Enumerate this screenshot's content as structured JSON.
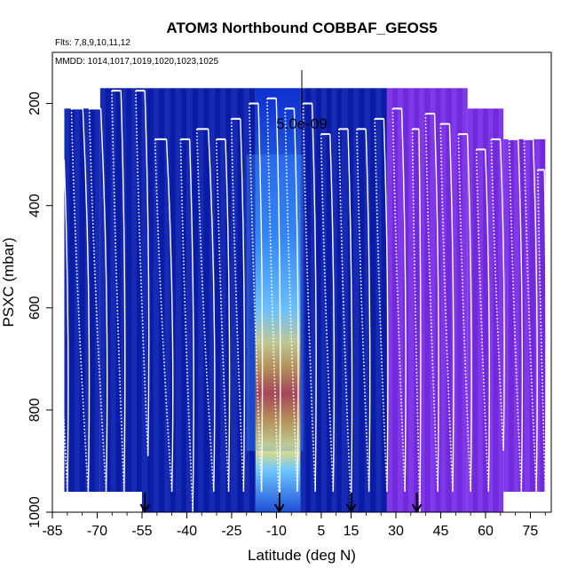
{
  "chart_data": {
    "type": "heatmap",
    "title": "ATOM3 Northbound COBBAF_GEOS5",
    "subtitle_flights": "Flts: 7,8,9,10,11,12",
    "subtitle_dates": "MMDD: 1014,1017,1019,1020,1023,1025",
    "xlabel": "Latitude (deg N)",
    "ylabel": "PSXC (mbar)",
    "xlim": [
      -85,
      82
    ],
    "ylim": [
      1000,
      100
    ],
    "x_ticks": [
      "-85",
      "-70",
      "-55",
      "-40",
      "-25",
      "-10",
      "5",
      "15",
      "30",
      "45",
      "60",
      "75"
    ],
    "y_ticks": [
      "200",
      "400",
      "600",
      "800",
      "1000"
    ],
    "scale_label": "5.0e-09",
    "arrow_latitudes": [
      -54,
      -9,
      15,
      37
    ],
    "colors": {
      "low": "#0a1fb0",
      "mid": "#1f6fe6",
      "high": "#d81c00",
      "north": "#7a2ee8",
      "track": "#ffffff"
    },
    "columns": [
      {
        "lat0": -81,
        "lat1": -69,
        "ptop": 210,
        "pbot": 960,
        "kind": "low"
      },
      {
        "lat0": -69,
        "lat1": -55,
        "ptop": 170,
        "pbot": 960,
        "kind": "low"
      },
      {
        "lat0": -55,
        "lat1": -40,
        "ptop": 170,
        "pbot": 1000,
        "kind": "low"
      },
      {
        "lat0": -40,
        "lat1": -25,
        "ptop": 170,
        "pbot": 1000,
        "kind": "low"
      },
      {
        "lat0": -25,
        "lat1": -17,
        "ptop": 170,
        "pbot": 1000,
        "kind": "low"
      },
      {
        "lat0": -17,
        "lat1": -2,
        "ptop": 170,
        "pbot": 1000,
        "kind": "plume"
      },
      {
        "lat0": -2,
        "lat1": 12,
        "ptop": 170,
        "pbot": 1000,
        "kind": "low"
      },
      {
        "lat0": 12,
        "lat1": 27,
        "ptop": 170,
        "pbot": 1000,
        "kind": "low"
      },
      {
        "lat0": 27,
        "lat1": 54,
        "ptop": 170,
        "pbot": 1000,
        "kind": "north"
      },
      {
        "lat0": 54,
        "lat1": 66,
        "ptop": 210,
        "pbot": 1000,
        "kind": "north"
      },
      {
        "lat0": 66,
        "lat1": 80,
        "ptop": 270,
        "pbot": 960,
        "kind": "north"
      }
    ],
    "plume": {
      "lat": -9,
      "p_center": 730,
      "p_halfwidth": 110,
      "lat_halfwidth": 5
    },
    "flight_profiles": [
      {
        "lat_top": -82,
        "lat_bot": -80,
        "ptop": 310,
        "pbot": 960
      },
      {
        "lat_top": -76,
        "lat_bot": -73,
        "ptop": 210,
        "pbot": 960
      },
      {
        "lat_top": -70,
        "lat_bot": -67,
        "ptop": 210,
        "pbot": 960
      },
      {
        "lat_top": -63,
        "lat_bot": -61,
        "ptop": 175,
        "pbot": 960
      },
      {
        "lat_top": -55,
        "lat_bot": -53,
        "ptop": 175,
        "pbot": 890
      },
      {
        "lat_top": -48,
        "lat_bot": -45,
        "ptop": 270,
        "pbot": 960
      },
      {
        "lat_top": -40,
        "lat_bot": -38,
        "ptop": 270,
        "pbot": 1000
      },
      {
        "lat_top": -34,
        "lat_bot": -31,
        "ptop": 250,
        "pbot": 960
      },
      {
        "lat_top": -28,
        "lat_bot": -26,
        "ptop": 270,
        "pbot": 960
      },
      {
        "lat_top": -23,
        "lat_bot": -21,
        "ptop": 230,
        "pbot": 960
      },
      {
        "lat_top": -17,
        "lat_bot": -15,
        "ptop": 200,
        "pbot": 960
      },
      {
        "lat_top": -11,
        "lat_bot": -9,
        "ptop": 190,
        "pbot": 1000
      },
      {
        "lat_top": -5,
        "lat_bot": -3,
        "ptop": 210,
        "pbot": 960
      },
      {
        "lat_top": 1,
        "lat_bot": 3,
        "ptop": 200,
        "pbot": 960
      },
      {
        "lat_top": 7,
        "lat_bot": 9,
        "ptop": 260,
        "pbot": 960
      },
      {
        "lat_top": 13,
        "lat_bot": 15,
        "ptop": 250,
        "pbot": 1000
      },
      {
        "lat_top": 19,
        "lat_bot": 21,
        "ptop": 250,
        "pbot": 960
      },
      {
        "lat_top": 25,
        "lat_bot": 27,
        "ptop": 230,
        "pbot": 960
      },
      {
        "lat_top": 31,
        "lat_bot": 33,
        "ptop": 210,
        "pbot": 960
      },
      {
        "lat_top": 37,
        "lat_bot": 38,
        "ptop": 250,
        "pbot": 1000
      },
      {
        "lat_top": 42,
        "lat_bot": 44,
        "ptop": 220,
        "pbot": 960
      },
      {
        "lat_top": 47,
        "lat_bot": 49,
        "ptop": 240,
        "pbot": 960
      },
      {
        "lat_top": 53,
        "lat_bot": 55,
        "ptop": 260,
        "pbot": 960
      },
      {
        "lat_top": 59,
        "lat_bot": 61,
        "ptop": 290,
        "pbot": 960
      },
      {
        "lat_top": 64,
        "lat_bot": 66,
        "ptop": 270,
        "pbot": 880
      },
      {
        "lat_top": 70,
        "lat_bot": 72,
        "ptop": 270,
        "pbot": 960
      },
      {
        "lat_top": 75,
        "lat_bot": 77,
        "ptop": 270,
        "pbot": 960
      },
      {
        "lat_top": 79,
        "lat_bot": 80,
        "ptop": 330,
        "pbot": 960
      }
    ]
  }
}
